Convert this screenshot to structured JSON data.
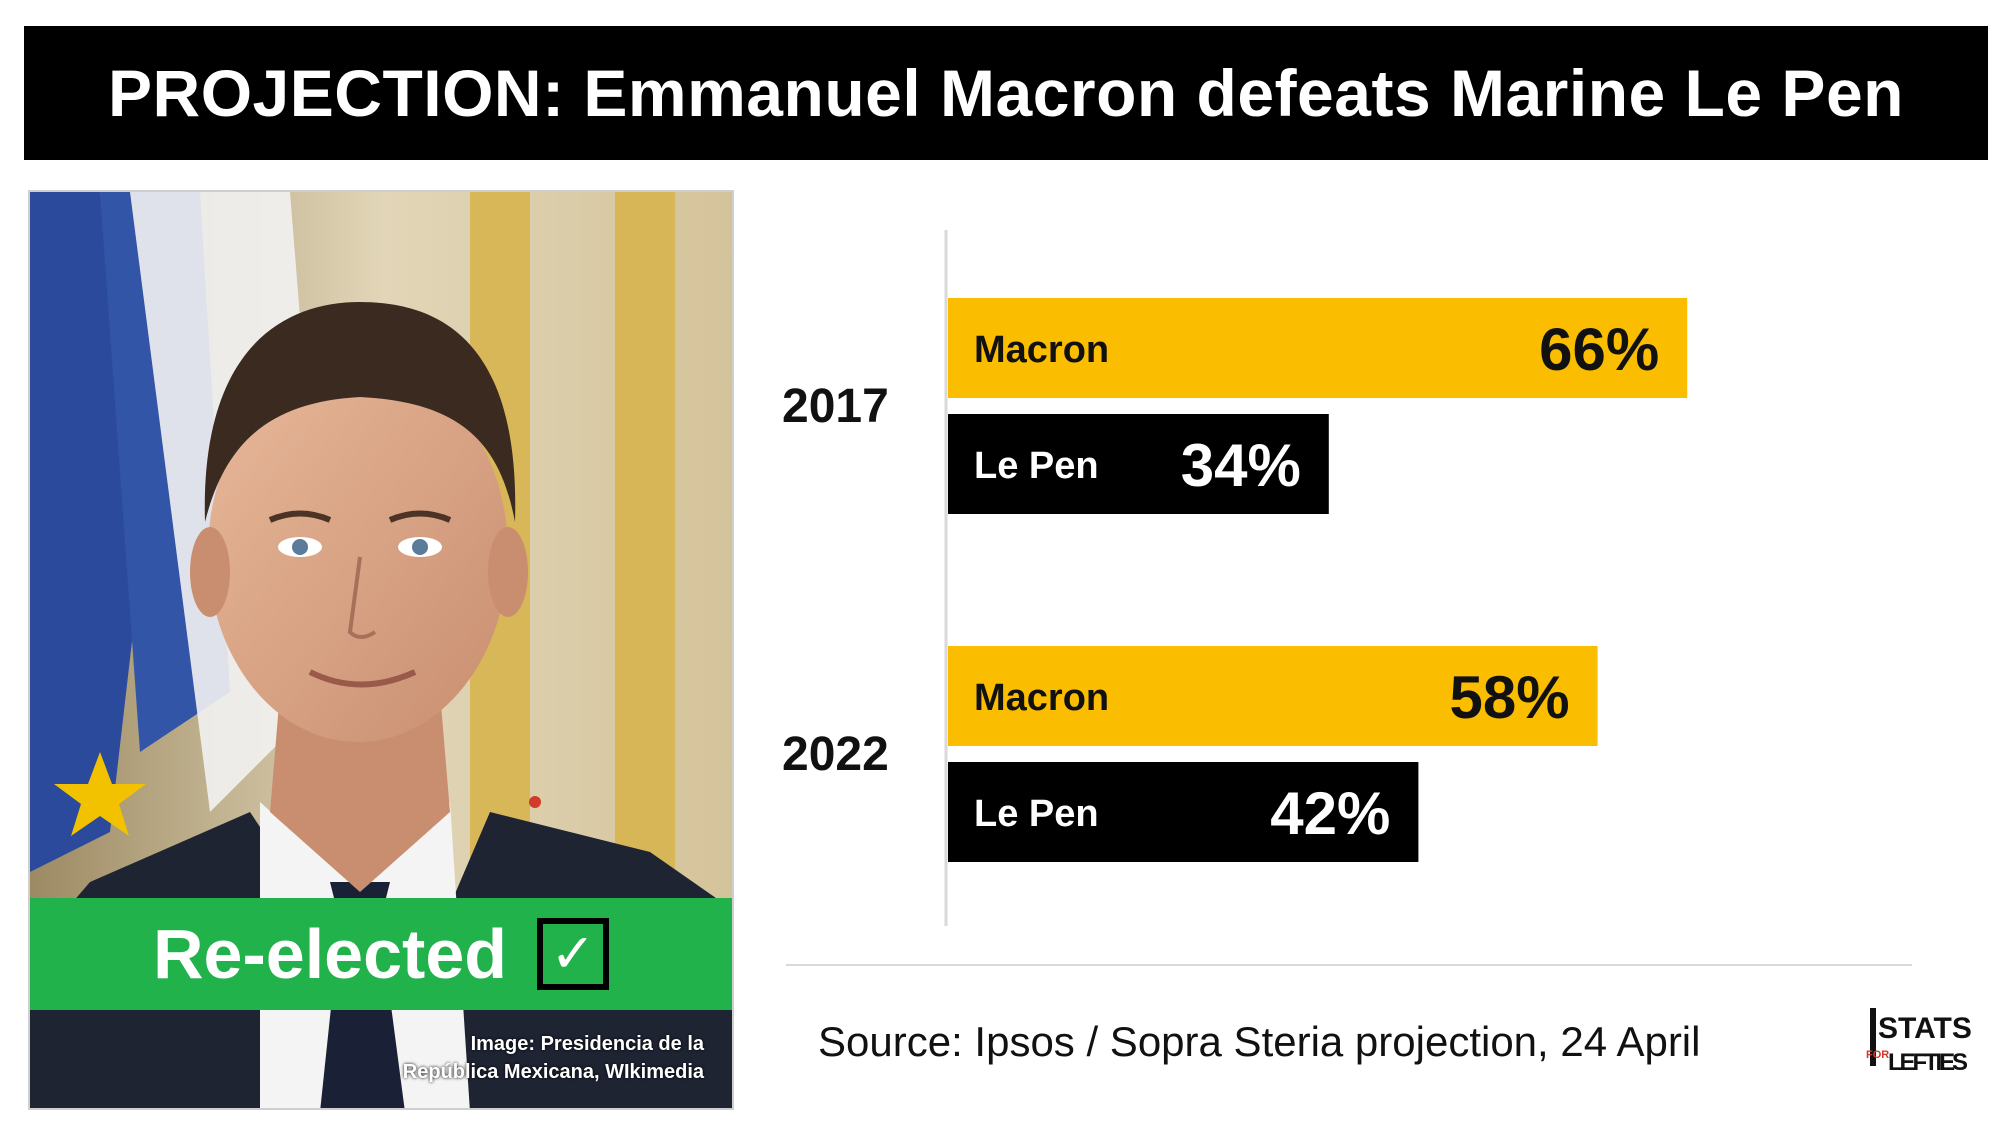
{
  "header": {
    "title": "PROJECTION: Emmanuel Macron defeats Marine Le Pen"
  },
  "photo": {
    "banner_label": "Re-elected",
    "check_icon": "check-icon",
    "credit_line1": "Image: Presidencia de la",
    "credit_line2": "República Mexicana, WIkimedia"
  },
  "chart_data": {
    "type": "bar",
    "orientation": "horizontal",
    "categories": [
      "2017",
      "2022"
    ],
    "series": [
      {
        "name": "Macron",
        "values": [
          66,
          58
        ],
        "color": "#fbbd00",
        "text_color": "#111111"
      },
      {
        "name": "Le Pen",
        "values": [
          34,
          42
        ],
        "color": "#000000",
        "text_color": "#ffffff"
      }
    ],
    "value_suffix": "%",
    "xlim": [
      0,
      100
    ],
    "title": "",
    "xlabel": "",
    "ylabel": ""
  },
  "footer": {
    "source": "Source: Ipsos / Sopra Steria projection, 24 April",
    "logo_line1": "STATS",
    "logo_small": "FOR",
    "logo_line2": "LEFTIES"
  }
}
